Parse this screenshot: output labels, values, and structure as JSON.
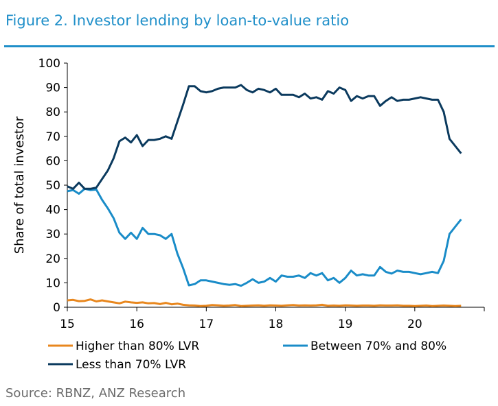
{
  "header": {
    "title": "Figure 2. Investor lending by loan-to-value ratio"
  },
  "footer": {
    "source": "Source: RBNZ, ANZ Research"
  },
  "chart_data": {
    "type": "line",
    "ylabel": "Share of total investor",
    "xlabel": "",
    "ylim": [
      0,
      100
    ],
    "yticks": [
      0,
      10,
      20,
      30,
      40,
      50,
      60,
      70,
      80,
      90,
      100
    ],
    "xlim": [
      15,
      21
    ],
    "xticks": [
      15,
      16,
      17,
      18,
      19,
      20
    ],
    "xtick_labels": [
      "15",
      "16",
      "17",
      "18",
      "19",
      "20"
    ],
    "grid": false,
    "legend_position": "bottom",
    "colors": {
      "higher": "#e8871e",
      "between": "#1a8cc8",
      "less": "#0b3a5e",
      "axis": "#000000"
    },
    "series": [
      {
        "key": "higher",
        "name": "Higher than 80% LVR",
        "x": [
          15.0,
          15.0833,
          15.1667,
          15.25,
          15.3333,
          15.4167,
          15.5,
          15.5833,
          15.6667,
          15.75,
          15.8333,
          15.9167,
          16.0,
          16.0833,
          16.1667,
          16.25,
          16.3333,
          16.4167,
          16.5,
          16.5833,
          16.6667,
          16.75,
          16.8333,
          16.9167,
          17.0,
          17.0833,
          17.1667,
          17.25,
          17.3333,
          17.4167,
          17.5,
          17.5833,
          17.6667,
          17.75,
          17.8333,
          17.9167,
          18.0,
          18.0833,
          18.1667,
          18.25,
          18.3333,
          18.4167,
          18.5,
          18.5833,
          18.6667,
          18.75,
          18.8333,
          18.9167,
          19.0,
          19.0833,
          19.1667,
          19.25,
          19.3333,
          19.4167,
          19.5,
          19.5833,
          19.6667,
          19.75,
          19.8333,
          19.9167,
          20.0,
          20.0833,
          20.1667,
          20.25,
          20.3333,
          20.4167,
          20.5,
          20.5833,
          20.6667
        ],
        "values": [
          2.8,
          3.0,
          2.5,
          2.6,
          3.2,
          2.4,
          2.8,
          2.4,
          2.0,
          1.6,
          2.3,
          2.0,
          1.8,
          2.0,
          1.6,
          1.7,
          1.3,
          1.8,
          1.2,
          1.5,
          1.0,
          0.8,
          0.7,
          0.5,
          0.6,
          0.9,
          0.8,
          0.6,
          0.7,
          0.9,
          0.5,
          0.6,
          0.7,
          0.8,
          0.6,
          0.8,
          0.7,
          0.6,
          0.8,
          0.9,
          0.7,
          0.8,
          0.7,
          0.8,
          1.0,
          0.6,
          0.7,
          0.6,
          0.8,
          0.7,
          0.6,
          0.7,
          0.7,
          0.6,
          0.8,
          0.7,
          0.7,
          0.8,
          0.6,
          0.6,
          0.5,
          0.6,
          0.7,
          0.5,
          0.6,
          0.7,
          0.6,
          0.5,
          0.6
        ]
      },
      {
        "key": "between",
        "name": "Between 70% and 80%",
        "x": [
          15.0,
          15.0833,
          15.1667,
          15.25,
          15.3333,
          15.4167,
          15.5,
          15.5833,
          15.6667,
          15.75,
          15.8333,
          15.9167,
          16.0,
          16.0833,
          16.1667,
          16.25,
          16.3333,
          16.4167,
          16.5,
          16.5833,
          16.6667,
          16.75,
          16.8333,
          16.9167,
          17.0,
          17.0833,
          17.1667,
          17.25,
          17.3333,
          17.4167,
          17.5,
          17.5833,
          17.6667,
          17.75,
          17.8333,
          17.9167,
          18.0,
          18.0833,
          18.1667,
          18.25,
          18.3333,
          18.4167,
          18.5,
          18.5833,
          18.6667,
          18.75,
          18.8333,
          18.9167,
          19.0,
          19.0833,
          19.1667,
          19.25,
          19.3333,
          19.4167,
          19.5,
          19.5833,
          19.6667,
          19.75,
          19.8333,
          19.9167,
          20.0,
          20.0833,
          20.1667,
          20.25,
          20.3333,
          20.4167,
          20.5,
          20.5833,
          20.6667
        ],
        "values": [
          47.5,
          48.0,
          46.5,
          48.5,
          48.0,
          48.2,
          44.0,
          40.5,
          36.5,
          30.5,
          28.0,
          30.5,
          28.0,
          32.5,
          30.0,
          30.0,
          29.5,
          28.0,
          30.0,
          22.0,
          16.0,
          9.0,
          9.5,
          11.0,
          11.0,
          10.5,
          10.0,
          9.5,
          9.2,
          9.5,
          8.8,
          10.0,
          11.5,
          10.0,
          10.5,
          12.0,
          10.5,
          13.0,
          12.5,
          12.5,
          13.0,
          12.0,
          14.0,
          13.0,
          14.0,
          11.0,
          12.0,
          10.0,
          12.0,
          15.0,
          13.0,
          13.5,
          13.0,
          13.0,
          16.5,
          14.5,
          13.8,
          15.0,
          14.5,
          14.5,
          14.0,
          13.5,
          14.0,
          14.5,
          14.0,
          19.0,
          30.0,
          33.0,
          36.0
        ]
      },
      {
        "key": "less",
        "name": "Less than 70% LVR",
        "x": [
          15.0,
          15.0833,
          15.1667,
          15.25,
          15.3333,
          15.4167,
          15.5,
          15.5833,
          15.6667,
          15.75,
          15.8333,
          15.9167,
          16.0,
          16.0833,
          16.1667,
          16.25,
          16.3333,
          16.4167,
          16.5,
          16.5833,
          16.6667,
          16.75,
          16.8333,
          16.9167,
          17.0,
          17.0833,
          17.1667,
          17.25,
          17.3333,
          17.4167,
          17.5,
          17.5833,
          17.6667,
          17.75,
          17.8333,
          17.9167,
          18.0,
          18.0833,
          18.1667,
          18.25,
          18.3333,
          18.4167,
          18.5,
          18.5833,
          18.6667,
          18.75,
          18.8333,
          18.9167,
          19.0,
          19.0833,
          19.1667,
          19.25,
          19.3333,
          19.4167,
          19.5,
          19.5833,
          19.6667,
          19.75,
          19.8333,
          19.9167,
          20.0,
          20.0833,
          20.1667,
          20.25,
          20.3333,
          20.4167,
          20.5,
          20.5833,
          20.6667
        ],
        "values": [
          49.5,
          48.5,
          51.0,
          48.5,
          48.5,
          49.0,
          52.5,
          56.0,
          61.0,
          68.0,
          69.5,
          67.5,
          70.5,
          66.0,
          68.5,
          68.5,
          69.0,
          70.0,
          69.0,
          76.0,
          83.0,
          90.5,
          90.5,
          88.5,
          88.0,
          88.5,
          89.5,
          90.0,
          90.0,
          90.0,
          91.0,
          89.0,
          88.0,
          89.5,
          89.0,
          88.0,
          89.5,
          87.0,
          87.0,
          87.0,
          86.0,
          87.5,
          85.5,
          86.0,
          85.0,
          88.5,
          87.5,
          90.0,
          89.0,
          84.5,
          86.5,
          85.5,
          86.5,
          86.5,
          82.5,
          84.5,
          86.0,
          84.5,
          85.0,
          85.0,
          85.5,
          86.0,
          85.5,
          85.0,
          85.0,
          80.0,
          69.0,
          66.0,
          63.0
        ]
      }
    ]
  }
}
